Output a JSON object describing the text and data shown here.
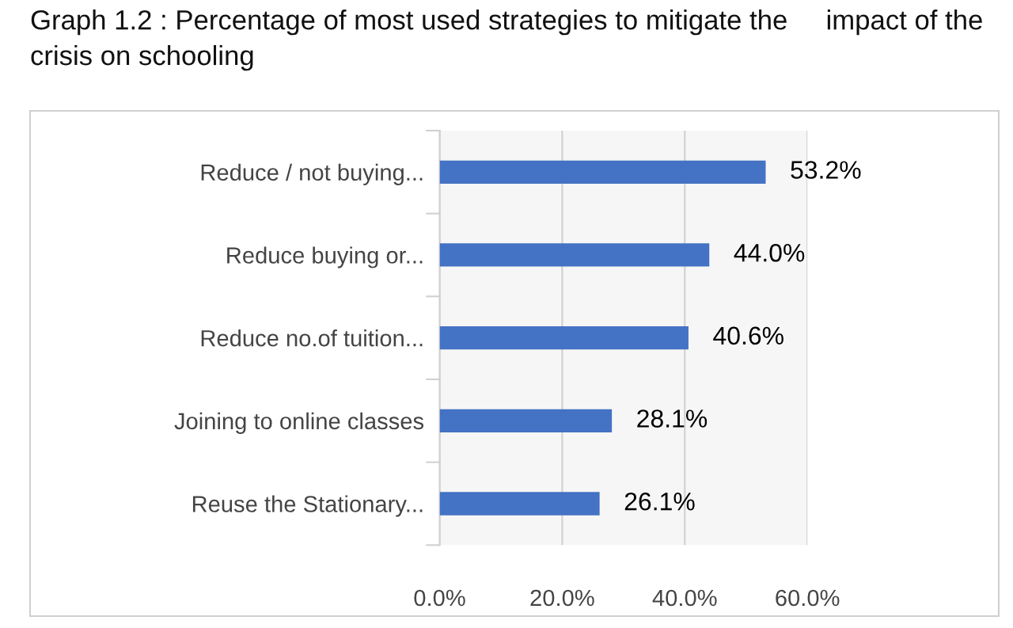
{
  "chart_data": {
    "type": "bar",
    "orientation": "horizontal",
    "title": "Graph 1.2 : Percentage of most used strategies to mitigate the     impact of the crisis on schooling",
    "categories": [
      "Reduce / not buying...",
      "Reduce buying or...",
      "Reduce no.of tuition...",
      "Joining to online classes",
      "Reuse the Stationary..."
    ],
    "values": [
      53.2,
      44.0,
      40.6,
      28.1,
      26.1
    ],
    "value_labels": [
      "53.2%",
      "44.0%",
      "40.6%",
      "28.1%",
      "26.1%"
    ],
    "color": "#4472c4",
    "xlim": [
      0,
      60
    ],
    "xticks": [
      {
        "value": 0,
        "label": "0.0%"
      },
      {
        "value": 20,
        "label": "20.0%"
      },
      {
        "value": 40,
        "label": "40.0%"
      },
      {
        "value": 60,
        "label": "60.0%"
      }
    ],
    "grid": "x"
  }
}
